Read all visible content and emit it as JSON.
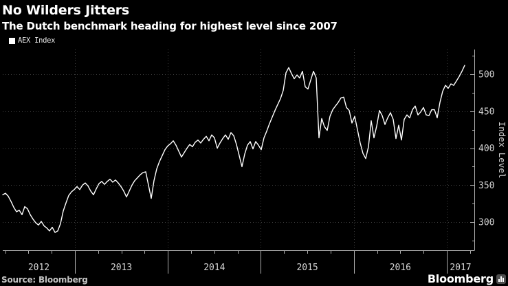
{
  "header": {
    "title": "No Wilders Jitters",
    "subtitle": "The Dutch benchmark heading for highest level since 2007"
  },
  "legend": {
    "label": "AEX Index",
    "marker_color": "#ffffff"
  },
  "source": {
    "label": "Source: Bloomberg"
  },
  "branding": {
    "wordmark": "Bloomberg"
  },
  "chart_data": {
    "type": "line",
    "title": "No Wilders Jitters",
    "subtitle": "The Dutch benchmark heading for highest level since 2007",
    "ylabel": "Index Level",
    "legend_position": "top-left",
    "grid": "dotted",
    "xlim": [
      2012.2237,
      2017.296
    ],
    "ylim": [
      261.9,
      533.5
    ],
    "x_label_years": [
      "2012",
      "2013",
      "2014",
      "2015",
      "2016",
      "2017"
    ],
    "x_major_ticks": [
      2013,
      2014,
      2015,
      2016,
      2017
    ],
    "x_minor_step": 0.25,
    "y_ticks": [
      300,
      350,
      400,
      450,
      500
    ],
    "y_minor_ticks": [
      275,
      325,
      375,
      425,
      475,
      525
    ],
    "colors": {
      "line": "#ffffff",
      "axis": "#b0b0b0",
      "grid": "#424242",
      "tick_label": "#d4d4d4",
      "background": "#000000"
    },
    "series": [
      {
        "name": "AEX Index",
        "color": "#ffffff",
        "t_start": 2012.2237,
        "dt": 0.0295749,
        "values": [
          337,
          339,
          335,
          328,
          320,
          314,
          316,
          310,
          321,
          318,
          310,
          304,
          299,
          296,
          301,
          295,
          292,
          288,
          293,
          286,
          288,
          298,
          315,
          326,
          336,
          341,
          344,
          348,
          344,
          350,
          353,
          349,
          342,
          337,
          345,
          352,
          355,
          351,
          355,
          358,
          354,
          357,
          353,
          348,
          342,
          334,
          342,
          350,
          356,
          360,
          364,
          367,
          368,
          350,
          332,
          356,
          372,
          382,
          390,
          398,
          403,
          406,
          410,
          404,
          396,
          388,
          394,
          400,
          405,
          402,
          408,
          411,
          407,
          412,
          416,
          410,
          418,
          414,
          400,
          407,
          413,
          418,
          412,
          421,
          417,
          405,
          390,
          375,
          392,
          404,
          409,
          399,
          409,
          404,
          398,
          414,
          423,
          433,
          442,
          451,
          459,
          467,
          478,
          502,
          509,
          501,
          494,
          499,
          495,
          504,
          483,
          480,
          492,
          504,
          495,
          414,
          440,
          429,
          424,
          443,
          452,
          457,
          462,
          468,
          469,
          455,
          451,
          434,
          443,
          425,
          407,
          393,
          386,
          402,
          437,
          414,
          430,
          451,
          444,
          432,
          441,
          448,
          439,
          413,
          431,
          411,
          439,
          445,
          441,
          452,
          457,
          445,
          449,
          455,
          445,
          444,
          452,
          452,
          441,
          462,
          477,
          485,
          481,
          487,
          485,
          491,
          497,
          504,
          512
        ]
      }
    ]
  }
}
